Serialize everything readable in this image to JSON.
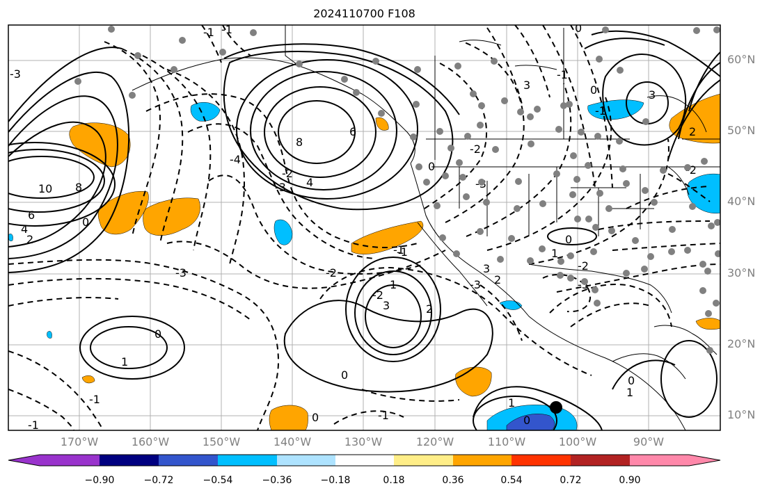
{
  "title": "2024110700 F108",
  "lat_labels": [
    "60°N",
    "50°N",
    "40°N",
    "30°N",
    "20°N",
    "10°N"
  ],
  "lon_labels": [
    "170°W",
    "160°W",
    "150°W",
    "140°W",
    "130°W",
    "120°W",
    "110°W",
    "100°W",
    "90°W"
  ],
  "colorbar": {
    "ticks": [
      "−0.90",
      "−0.72",
      "−0.54",
      "−0.36",
      "−0.18",
      "0.18",
      "0.36",
      "0.54",
      "0.72",
      "0.90"
    ],
    "colors": [
      "#9933cc",
      "#000080",
      "#3355cc",
      "#00bfff",
      "#aee3ff",
      "#ffffff",
      "#ffee88",
      "#ffa500",
      "#ff3300",
      "#b22222",
      "#ff88aa"
    ]
  },
  "contour_labels": [
    "10",
    "8",
    "6",
    "4",
    "2",
    "0",
    "8",
    "6",
    "4",
    "-1",
    "-2",
    "-3",
    "-4",
    "3",
    "2",
    "1",
    "0",
    "-1",
    "-2",
    "-3",
    "1",
    "0",
    "-1",
    "3",
    "2",
    "0",
    "-1",
    "3",
    "-3",
    "-2",
    "-1",
    "0",
    "1",
    "-2",
    "-3",
    "2",
    "3",
    "-3",
    "-1",
    "0",
    "1",
    "-1",
    "0",
    "0",
    "1",
    "0",
    "-1",
    "-2",
    "-1",
    "0",
    "-2",
    "-3"
  ]
}
